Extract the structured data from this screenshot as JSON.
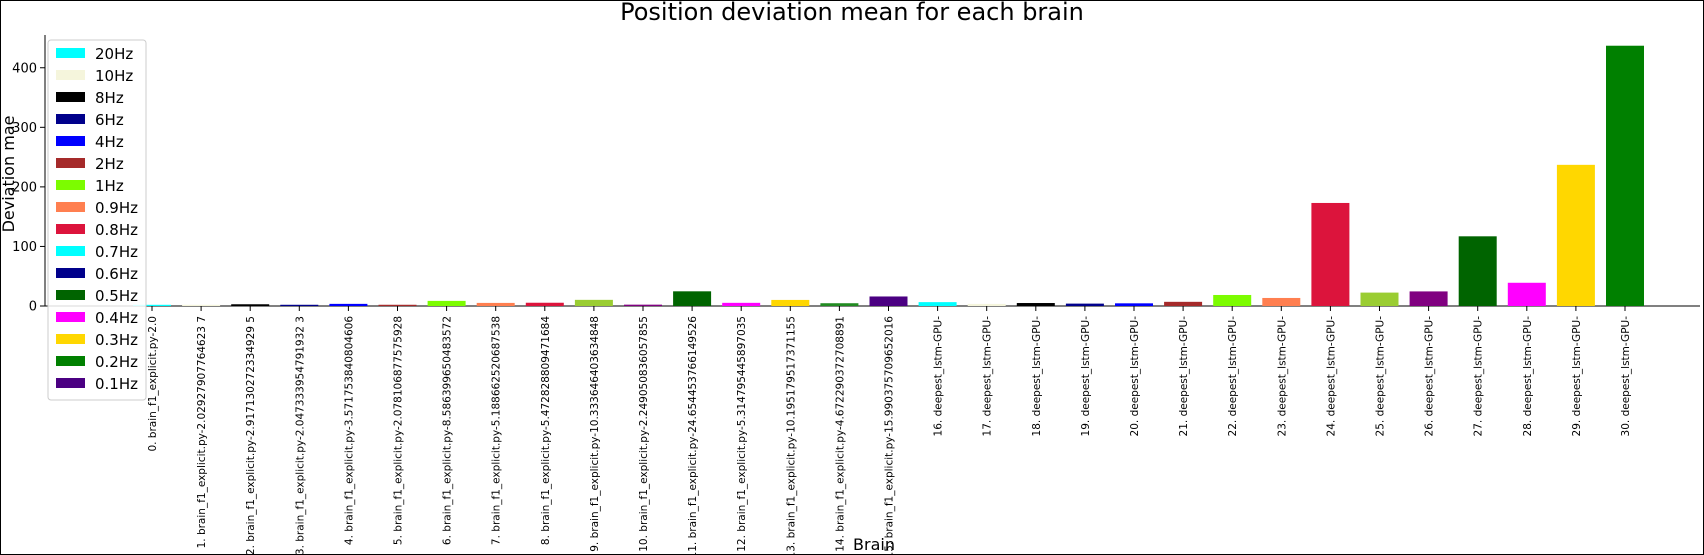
{
  "chart_data": {
    "type": "bar",
    "title": "Position deviation mean for each brain",
    "xlabel": "Brain",
    "ylabel": "Deviation mae",
    "ylim": [
      0,
      455
    ],
    "yticks": [
      0,
      100,
      200,
      300,
      400
    ],
    "grid": false,
    "legend_placement": "upper-left",
    "categories": [
      "0. brain_f1_explicit.py-2.0",
      "1. brain_f1_explicit.py-2.02927907764623 7",
      "2. brain_f1_explicit.py-2.917130272334929 5",
      "3. brain_f1_explicit.py-2.047333954791932 3",
      "4. brain_f1_explicit.py-3.571753840804606",
      "5. brain_f1_explicit.py-2.078106877575928",
      "6. brain_f1_explicit.py-8.586399650483572",
      "7. brain_f1_explicit.py-5.188662520687538",
      "8. brain_f1_explicit.py-5.472828809471684",
      "9. brain_f1_explicit.py-10.333646403634848",
      "10. brain_f1_explicit.py-2.249050836057855",
      "11. brain_f1_explicit.py-24.654453766149526",
      "12. brain_f1_explicit.py-5.314795445897035",
      "13. brain_f1_explicit.py-10.195179517371155",
      "14. brain_f1_explicit.py-4.672290372708891",
      "15. brain_f1_explicit.py-15.990375709652016",
      "16. deepest_lstm-GPU-",
      "17. deepest_lstm-GPU-",
      "18. deepest_lstm-GPU-",
      "19. deepest_lstm-GPU-",
      "20. deepest_lstm-GPU-",
      "21. deepest_lstm-GPU-",
      "22. deepest_lstm-GPU-",
      "23. deepest_lstm-GPU-",
      "24. deepest_lstm-GPU-",
      "25. deepest_lstm-GPU-",
      "26. deepest_lstm-GPU-",
      "27. deepest_lstm-GPU-",
      "28. deepest_lstm-GPU-",
      "29. deepest_lstm-GPU-",
      "30. deepest_lstm-GPU-"
    ],
    "values": [
      2.0,
      2.03,
      2.92,
      2.05,
      3.57,
      2.08,
      8.59,
      5.19,
      5.47,
      10.33,
      2.25,
      24.65,
      5.31,
      10.2,
      4.67,
      15.99,
      6.5,
      3.5,
      5.0,
      4.0,
      4.5,
      7.0,
      18.5,
      13.5,
      173,
      22.5,
      24.5,
      117,
      39,
      237,
      437
    ],
    "bar_colors": [
      "#00ffff",
      "#f5f5dc",
      "#000000",
      "#00008b",
      "#0000ff",
      "#a52a2a",
      "#7cfc00",
      "#ff7f50",
      "#dc143c",
      "#9acd32",
      "#800080",
      "#006400",
      "#ff00ff",
      "#ffd700",
      "#228b22",
      "#4b0082",
      "#00ffff",
      "#f5f5dc",
      "#000000",
      "#00008b",
      "#0000ff",
      "#a52a2a",
      "#7cfc00",
      "#ff7f50",
      "#dc143c",
      "#9acd32",
      "#800080",
      "#006400",
      "#ff00ff",
      "#ffd700",
      "#008000"
    ],
    "legend": [
      {
        "label": "20Hz",
        "color": "#00ffff"
      },
      {
        "label": "10Hz",
        "color": "#f5f5dc"
      },
      {
        "label": "8Hz",
        "color": "#000000"
      },
      {
        "label": "6Hz",
        "color": "#00008b"
      },
      {
        "label": "4Hz",
        "color": "#0000ff"
      },
      {
        "label": "2Hz",
        "color": "#a52a2a"
      },
      {
        "label": "1Hz",
        "color": "#7cfc00"
      },
      {
        "label": "0.9Hz",
        "color": "#ff7f50"
      },
      {
        "label": "0.8Hz",
        "color": "#dc143c"
      },
      {
        "label": "0.7Hz",
        "color": "#00ffff"
      },
      {
        "label": "0.6Hz",
        "color": "#00008b"
      },
      {
        "label": "0.5Hz",
        "color": "#006400"
      },
      {
        "label": "0.4Hz",
        "color": "#ff00ff"
      },
      {
        "label": "0.3Hz",
        "color": "#ffd700"
      },
      {
        "label": "0.2Hz",
        "color": "#008000"
      },
      {
        "label": "0.1Hz",
        "color": "#4b0082"
      }
    ]
  }
}
